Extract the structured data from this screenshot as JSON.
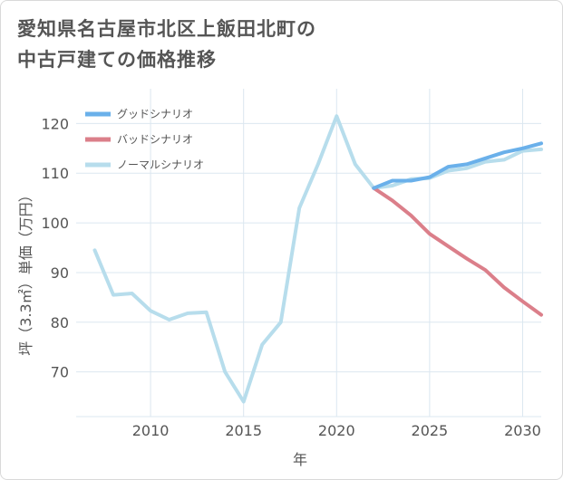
{
  "title_lines": [
    "愛知県名古屋市北区上飯田北町の",
    "中古戸建ての価格推移"
  ],
  "chart_data": {
    "type": "line",
    "xlabel": "年",
    "ylabel": "坪（3.3㎡）単価（万円）",
    "xlim": [
      2006,
      2031
    ],
    "ylim": [
      61,
      127
    ],
    "x_ticks": [
      2010,
      2015,
      2020,
      2025,
      2030
    ],
    "y_ticks": [
      70,
      80,
      90,
      100,
      110,
      120
    ],
    "grid": true,
    "legend_position": "top-left",
    "series": [
      {
        "name": "グッドシナリオ",
        "color": "#6ab0ea",
        "x": [
          2022,
          2023,
          2024,
          2025,
          2026,
          2027,
          2028,
          2029,
          2030,
          2031
        ],
        "values": [
          107,
          108.5,
          108.5,
          109.2,
          111.3,
          111.8,
          113,
          114.2,
          115,
          116
        ]
      },
      {
        "name": "バッドシナリオ",
        "color": "#db7f8a",
        "x": [
          2022,
          2023,
          2024,
          2025,
          2026,
          2027,
          2028,
          2029,
          2030,
          2031
        ],
        "values": [
          107,
          104.5,
          101.5,
          97.8,
          95.3,
          92.8,
          90.5,
          87,
          84.2,
          81.5
        ]
      },
      {
        "name": "ノーマルシナリオ",
        "color": "#b7ddec",
        "x": [
          2007,
          2008,
          2009,
          2010,
          2011,
          2012,
          2013,
          2014,
          2015,
          2016,
          2017,
          2018,
          2019,
          2020,
          2021,
          2022,
          2023,
          2024,
          2025,
          2026,
          2027,
          2028,
          2029,
          2030,
          2031
        ],
        "values": [
          94.5,
          85.5,
          85.8,
          82.3,
          80.5,
          81.8,
          82,
          70,
          64,
          75.5,
          80,
          103,
          111.8,
          121.5,
          111.8,
          107,
          107.5,
          108.8,
          109,
          110.5,
          111,
          112.3,
          112.7,
          114.5,
          114.8
        ]
      }
    ]
  }
}
